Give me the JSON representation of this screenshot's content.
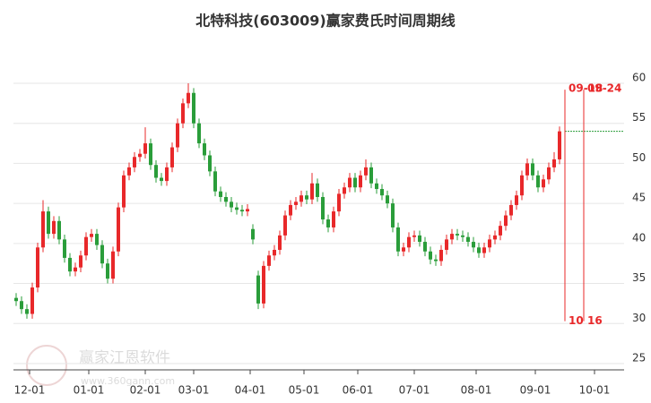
{
  "chart_data": {
    "type": "candlestick",
    "title": "北特科技(603009)赢家费氏时间周期线",
    "watermark": {
      "name": "赢家江恩软件",
      "url": "www.360gann.com"
    },
    "up_color": "#e8282a",
    "down_color": "#2a9d3a",
    "x": [
      -5,
      -3,
      -1,
      1,
      3,
      5,
      7,
      9,
      11,
      13,
      15,
      17,
      19,
      21,
      23,
      25,
      27,
      29,
      31,
      33,
      35,
      37,
      39,
      41,
      43,
      45,
      47,
      49,
      51,
      53,
      55,
      57,
      59,
      61,
      63,
      65,
      67,
      69,
      71,
      73,
      75,
      77,
      79,
      81,
      83,
      85,
      87,
      89,
      91,
      93,
      95,
      97,
      99,
      101,
      103,
      105,
      107,
      109,
      111,
      113,
      115,
      117,
      119,
      121,
      123,
      125,
      127,
      129,
      131,
      133,
      135,
      137,
      139,
      141,
      143,
      145,
      147,
      149,
      151,
      153,
      155,
      157,
      159,
      161,
      163,
      165,
      167,
      169,
      171,
      173,
      175,
      177,
      179,
      181,
      183,
      185,
      187,
      189,
      191,
      193,
      195,
      197
    ],
    "open": [
      33.2,
      32.8,
      31.8,
      31.2,
      34.5,
      39.5,
      44.0,
      41.2,
      42.8,
      40.5,
      38.2,
      36.5,
      37.0,
      38.5,
      40.8,
      41.2,
      39.8,
      37.5,
      35.6,
      39.0,
      44.5,
      48.5,
      49.5,
      50.8,
      51.2,
      52.5,
      49.8,
      48.2,
      47.8,
      49.5,
      52.0,
      55.0,
      57.5,
      58.8,
      55.0,
      52.5,
      51.0,
      49.0,
      46.5,
      45.8,
      45.2,
      44.5,
      44.2,
      44.0,
      41.8,
      36.0,
      32.5,
      37.2,
      38.5,
      39.2,
      41.0,
      43.5,
      44.8,
      45.2,
      46.0,
      45.5,
      47.5,
      45.8,
      43.0,
      42.0,
      44.0,
      46.2,
      47.0,
      48.2,
      47.0,
      48.5,
      49.5,
      47.5,
      46.8,
      46.0,
      45.0,
      42.0,
      39.0,
      39.5,
      40.8,
      41.0,
      40.2,
      39.0,
      38.0,
      37.8,
      39.2,
      40.5,
      41.2,
      41.0,
      40.8,
      40.2,
      39.5,
      38.8,
      39.5,
      40.5,
      41.0,
      42.2,
      43.5,
      44.8,
      46.0,
      48.5,
      50.0,
      48.5,
      47.0,
      48.0,
      49.5,
      50.5
    ],
    "high": [
      33.8,
      33.4,
      32.4,
      35.1,
      40.1,
      45.4,
      44.6,
      43.4,
      43.4,
      41.1,
      38.8,
      37.6,
      39.1,
      41.4,
      41.8,
      41.8,
      40.4,
      38.1,
      39.6,
      45.1,
      49.1,
      50.1,
      51.4,
      51.8,
      54.5,
      53.1,
      50.4,
      48.8,
      50.1,
      52.6,
      55.6,
      58.1,
      60.0,
      59.4,
      55.6,
      53.1,
      51.6,
      49.6,
      47.1,
      46.4,
      45.8,
      45.1,
      44.8,
      44.9,
      42.4,
      36.6,
      37.8,
      39.1,
      39.8,
      41.6,
      44.1,
      45.4,
      45.8,
      46.6,
      46.6,
      48.8,
      48.1,
      46.4,
      43.6,
      44.6,
      46.8,
      47.6,
      48.8,
      48.8,
      49.1,
      50.5,
      50.1,
      48.1,
      47.4,
      46.6,
      45.6,
      42.6,
      40.1,
      41.4,
      41.6,
      41.6,
      40.8,
      39.6,
      38.6,
      39.8,
      41.1,
      41.8,
      41.8,
      41.6,
      41.4,
      40.8,
      40.1,
      40.1,
      41.1,
      41.6,
      42.8,
      44.1,
      45.4,
      46.6,
      49.1,
      50.6,
      50.6,
      49.1,
      48.6,
      50.1,
      51.4,
      54.6
    ],
    "low": [
      32.2,
      31.2,
      30.6,
      30.6,
      33.9,
      38.9,
      40.6,
      40.6,
      39.9,
      37.6,
      35.9,
      35.9,
      36.4,
      37.9,
      40.2,
      39.2,
      36.9,
      35.0,
      35.0,
      38.4,
      43.9,
      47.9,
      48.9,
      50.2,
      50.6,
      49.2,
      47.6,
      47.2,
      47.2,
      48.9,
      51.4,
      54.4,
      56.9,
      54.4,
      51.9,
      50.4,
      48.4,
      45.9,
      45.2,
      44.6,
      43.9,
      43.6,
      43.4,
      43.4,
      39.9,
      31.8,
      31.9,
      36.6,
      37.9,
      38.6,
      40.4,
      42.9,
      44.2,
      44.6,
      44.9,
      44.9,
      45.2,
      42.4,
      41.4,
      41.4,
      43.4,
      45.6,
      46.4,
      46.4,
      46.4,
      47.9,
      46.9,
      46.2,
      45.4,
      44.4,
      41.4,
      38.4,
      38.4,
      38.9,
      40.2,
      39.6,
      38.4,
      37.4,
      37.2,
      37.2,
      38.6,
      39.9,
      40.4,
      40.2,
      39.6,
      38.9,
      38.2,
      38.2,
      38.9,
      39.9,
      40.4,
      41.6,
      42.9,
      44.2,
      45.4,
      47.9,
      47.9,
      46.4,
      46.4,
      47.4,
      48.9,
      49.9
    ],
    "close": [
      32.8,
      31.8,
      31.2,
      34.5,
      39.5,
      44.0,
      41.2,
      42.8,
      40.5,
      38.2,
      36.5,
      37.0,
      38.5,
      40.8,
      41.2,
      39.8,
      37.5,
      35.6,
      39.0,
      44.5,
      48.5,
      49.5,
      50.8,
      51.2,
      52.5,
      49.8,
      48.2,
      47.8,
      49.5,
      52.0,
      55.0,
      57.5,
      58.8,
      55.0,
      52.5,
      51.0,
      49.0,
      46.5,
      45.8,
      45.2,
      44.5,
      44.2,
      44.0,
      44.3,
      40.5,
      32.5,
      37.2,
      38.5,
      39.2,
      41.0,
      43.5,
      44.8,
      45.2,
      46.0,
      45.5,
      47.5,
      45.8,
      43.0,
      42.0,
      44.0,
      46.2,
      47.0,
      48.2,
      47.0,
      48.5,
      49.5,
      47.5,
      46.8,
      46.0,
      45.0,
      42.0,
      39.0,
      39.5,
      40.8,
      41.0,
      40.2,
      39.0,
      38.0,
      37.8,
      39.2,
      40.5,
      41.2,
      41.0,
      40.8,
      40.2,
      39.5,
      38.8,
      39.5,
      40.5,
      41.0,
      42.2,
      43.5,
      44.8,
      46.0,
      48.5,
      50.0,
      48.5,
      47.0,
      48.0,
      49.5,
      50.5,
      54.0
    ],
    "xlim": [
      -6,
      221
    ],
    "xticks": [
      {
        "value": 0,
        "label": "12-01"
      },
      {
        "value": 22,
        "label": "01-01"
      },
      {
        "value": 43,
        "label": "02-01"
      },
      {
        "value": 61,
        "label": "03-01"
      },
      {
        "value": 82,
        "label": "04-01"
      },
      {
        "value": 102,
        "label": "05-01"
      },
      {
        "value": 122,
        "label": "06-01"
      },
      {
        "value": 143,
        "label": "07-01"
      },
      {
        "value": 166,
        "label": "08-01"
      },
      {
        "value": 188,
        "label": "09-01"
      },
      {
        "value": 210,
        "label": "10-01"
      }
    ],
    "ylim": [
      24,
      65
    ],
    "yticks": [
      25,
      30,
      35,
      40,
      45,
      50,
      55,
      60
    ],
    "grid": true,
    "cycle_lines": [
      {
        "x": 199,
        "span": [
          30.3,
          59.2
        ],
        "top_label": "09-18",
        "bottom_label": "10"
      },
      {
        "x": 206,
        "span": [
          30.3,
          59.2
        ],
        "top_label": "09-24",
        "bottom_label": "16"
      }
    ],
    "cycle_color": "#e8282a",
    "ref_line": {
      "value": 54.0,
      "from": 199,
      "color": "#2a9d3a"
    }
  }
}
